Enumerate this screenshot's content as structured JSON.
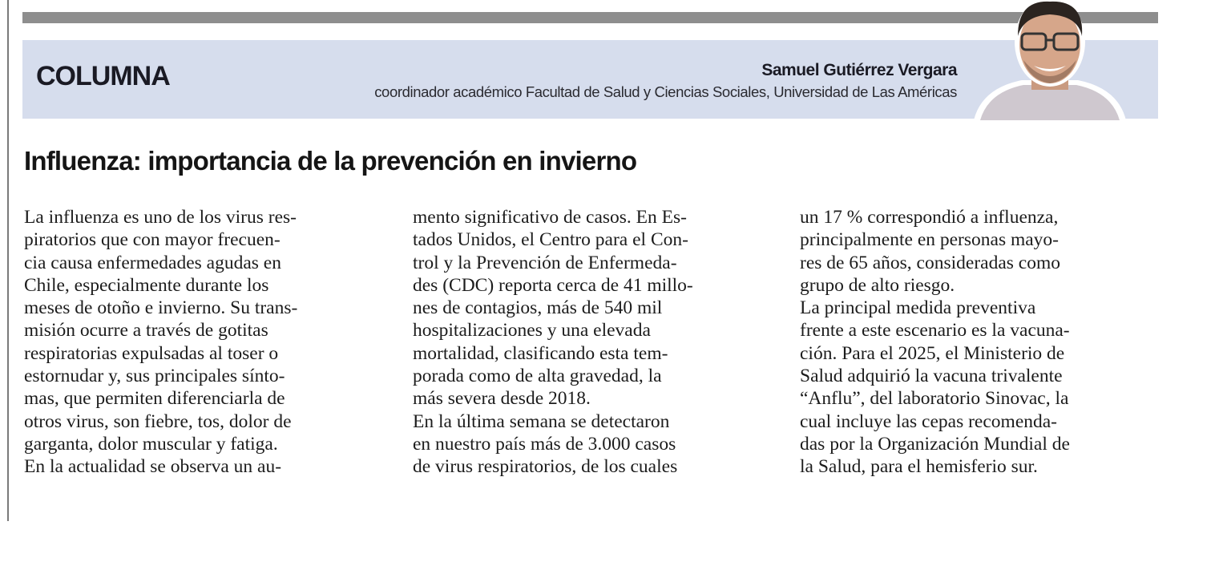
{
  "header": {
    "kicker": "COLUMNA",
    "author_name": "Samuel Gutiérrez Vergara",
    "author_role": "coordinador académico Facultad de Salud y Ciencias Sociales, Universidad de Las Américas",
    "band_color": "#d6dded"
  },
  "article": {
    "headline": "Influenza: importancia de la prevención en invierno",
    "columns": [
      [
        "La influenza es uno de los virus res-",
        "piratorios que con mayor frecuen-",
        "cia causa enfermedades agudas en",
        "Chile, especialmente durante los",
        "meses de otoño e invierno. Su trans-",
        "misión ocurre a través de gotitas",
        "respiratorias expulsadas al toser o",
        "estornudar y, sus principales sínto-",
        "mas, que permiten diferenciarla de",
        "otros virus, son fiebre, tos, dolor de",
        "garganta, dolor muscular y fatiga.",
        "En la actualidad se observa un au-"
      ],
      [
        "mento significativo de casos. En Es-",
        "tados Unidos, el Centro para el Con-",
        "trol y la Prevención de Enfermeda-",
        "des (CDC) reporta cerca de 41 millo-",
        "nes de contagios, más de 540 mil",
        "hospitalizaciones y una elevada",
        "mortalidad, clasificando esta tem-",
        "porada como de alta gravedad, la",
        "más severa desde 2018.",
        "En la última semana se detectaron",
        "en nuestro país más de 3.000 casos",
        "de virus respiratorios, de los cuales"
      ],
      [
        "un 17 % correspondió a influenza,",
        "principalmente en personas mayo-",
        "res de 65 años, consideradas como",
        "grupo de alto riesgo.",
        "La principal medida preventiva",
        "frente a este escenario es la vacuna-",
        "ción. Para el 2025, el Ministerio de",
        "Salud adquirió la vacuna trivalente",
        "“Anflu”, del laboratorio Sinovac, la",
        "cual incluye las cepas recomenda-",
        "das por la Organización Mundial de",
        "la Salud, para el hemisferio sur."
      ]
    ]
  }
}
